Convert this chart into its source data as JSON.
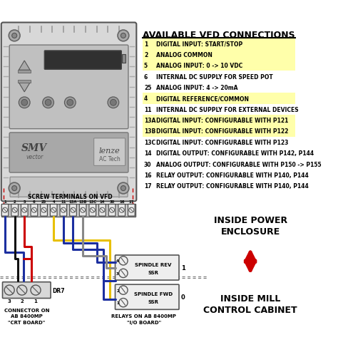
{
  "title": "AVAILABLE VFD CONNECTIONS",
  "bg_color": "#ffffff",
  "connections": [
    {
      "num": "1",
      "text": "DIGITAL INPUT: START/STOP",
      "highlight": true
    },
    {
      "num": "2",
      "text": "ANALOG COMMON",
      "highlight": true
    },
    {
      "num": "5",
      "text": "ANALOG INPUT: 0 -> 10 VDC",
      "highlight": true
    },
    {
      "num": "6",
      "text": "INTERNAL DC SUPPLY FOR SPEED POT",
      "highlight": false
    },
    {
      "num": "25",
      "text": "ANALOG INPUT: 4 -> 20mA",
      "highlight": false
    },
    {
      "num": "4",
      "text": "DIGITAL REFERENCE/COMMON",
      "highlight": true
    },
    {
      "num": "11",
      "text": "INTERNAL DC SUPPLY FOR EXTERNAL DEVICES",
      "highlight": false
    },
    {
      "num": "13A",
      "text": "DIGITAL INPUT: CONFIGURABLE WITH P121",
      "highlight": true
    },
    {
      "num": "13B",
      "text": "DIGITAL INPUT: CONFIGURABLE WITH P122",
      "highlight": true
    },
    {
      "num": "13C",
      "text": "DIGITAL INPUT: CONFIGURABLE WITH P123",
      "highlight": false
    },
    {
      "num": "14",
      "text": "DIGITAL OUTPUT: CONFIGURABLE WITH P142, P144",
      "highlight": false
    },
    {
      "num": "30",
      "text": "ANALOG OUTPUT: CONFIGURABLE WITH P150 -> P155",
      "highlight": false
    },
    {
      "num": "16",
      "text": "RELAY OUTPUT: CONFIGURABLE WITH P140, P144",
      "highlight": false
    },
    {
      "num": "17",
      "text": "RELAY OUTPUT: CONFIGURABLE WITH P140, P144",
      "highlight": false
    }
  ],
  "terminal_labels": [
    "1",
    "2",
    "5",
    "6",
    "25",
    "4",
    "11",
    "13A",
    "13B",
    "13C",
    "14",
    "30",
    "16",
    "17"
  ],
  "highlight_color": "#ffffaa",
  "wire_colors": {
    "blue": "#1c2fa0",
    "black": "#111111",
    "red": "#cc0000",
    "yellow": "#e8c000",
    "gray": "#888888"
  },
  "arrow_color": "#cc0000",
  "vfd_body": "#d8d8d8",
  "vfd_border": "#555555",
  "vfd_panel": "#c0c0c0",
  "vfd_inner": "#b8b8b8",
  "vfd_display": "#303030",
  "vfd_brand": "#a8a8a8"
}
